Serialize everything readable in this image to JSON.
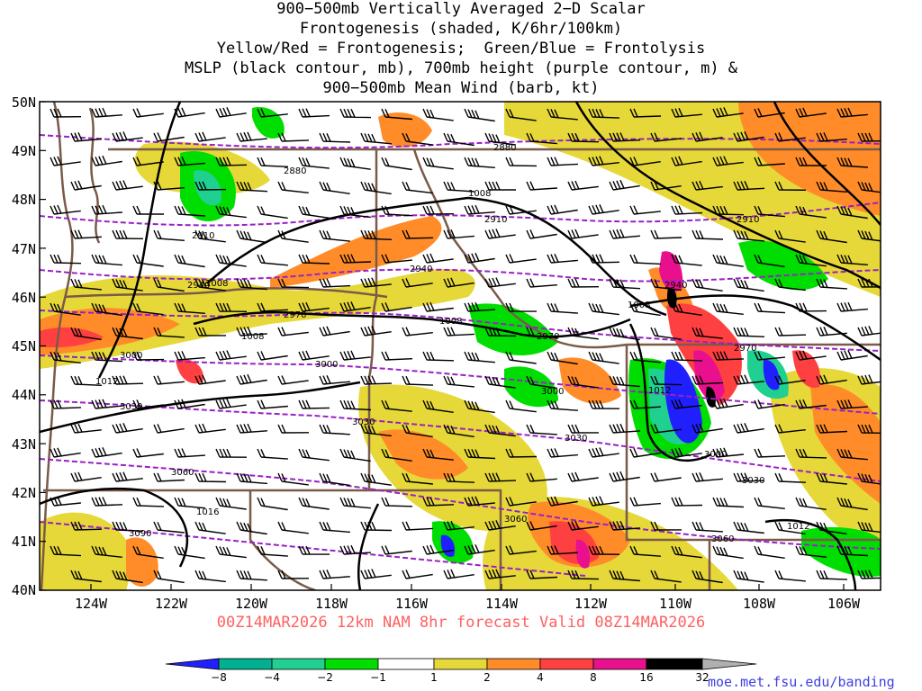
{
  "title": {
    "line1": "900−500mb Vertically Averaged 2−D Scalar",
    "line2": "Frontogenesis (shaded, K/6hr/100km)",
    "line3": "Yellow/Red = Frontogenesis;  Green/Blue = Frontolysis",
    "line4": "MSLP (black contour, mb), 700mb height (purple contour, m) &",
    "line5": "900−500mb Mean Wind (barb, kt)"
  },
  "latitude_labels": [
    "50N",
    "49N",
    "48N",
    "47N",
    "46N",
    "45N",
    "44N",
    "43N",
    "42N",
    "41N",
    "40N"
  ],
  "longitude_labels": [
    "124W",
    "122W",
    "120W",
    "118W",
    "116W",
    "114W",
    "112W",
    "110W",
    "108W",
    "106W"
  ],
  "mslp_labels": [
    "1008",
    "1008",
    "1008",
    "1008",
    "1008",
    "1012",
    "1012",
    "1016",
    "1012"
  ],
  "height_labels": [
    "2880",
    "2880",
    "2910",
    "2910",
    "2910",
    "2940",
    "2940",
    "2940",
    "2970",
    "2970",
    "2970",
    "3000",
    "3000",
    "3000",
    "3000",
    "3030",
    "3030",
    "3030",
    "3030",
    "3060",
    "3060",
    "3060",
    "3090"
  ],
  "footer": "00Z14MAR2026 12km NAM 8hr forecast Valid 08Z14MAR2026",
  "colorbar": {
    "labels": [
      "−8",
      "−4",
      "−2",
      "−1",
      "1",
      "2",
      "4",
      "8",
      "16",
      "32"
    ],
    "colors": [
      "#2020ff",
      "#00b090",
      "#20d090",
      "#00dd00",
      "#ffffff",
      "#e6d838",
      "#ff8c28",
      "#ff4040",
      "#e8108c",
      "#000000"
    ],
    "low_arrow_color": "#2020ff",
    "high_arrow_color": "#b0b0b0"
  },
  "credit": "moe.met.fsu.edu/banding",
  "colors": {
    "mslp": "#000000",
    "height": "#9a20c8",
    "borders": "#7a5a48",
    "frontogenesis_weak": "#e6d838",
    "frontogenesis_moderate": "#ff8c28",
    "frontogenesis_strong": "#ff4040",
    "frontogenesis_intense": "#e8108c",
    "frontolysis_weak": "#00dd00",
    "frontolysis_moderate": "#20d090",
    "frontolysis_strong": "#2020ff"
  }
}
